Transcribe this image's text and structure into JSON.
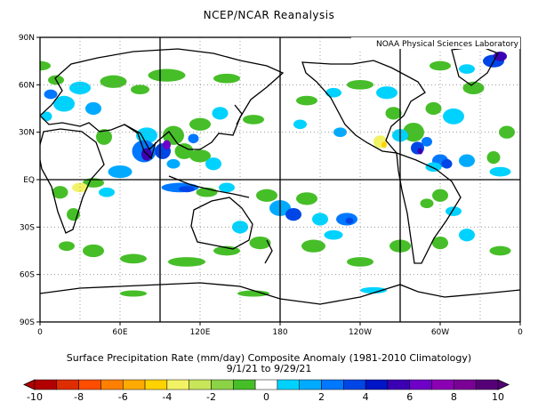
{
  "title": "NCEP/NCAR Reanalysis",
  "credit": "NOAA Physical Sciences Laboratory",
  "caption": "Surface Precipitation Rate (mm/day) Composite Anomaly (1981-2010 Climatology)",
  "date_range": "9/1/21  to 9/29/21",
  "lat_labels": [
    "90N",
    "60N",
    "30N",
    "EQ",
    "30S",
    "60S",
    "90S"
  ],
  "lon_labels": [
    "0",
    "60E",
    "120E",
    "180",
    "120W",
    "60W",
    "0"
  ],
  "colorbar_labels": [
    "-10",
    "-8",
    "-6",
    "-4",
    "-2",
    "0",
    "2",
    "4",
    "6",
    "8",
    "10"
  ],
  "colors": {
    "neg": [
      "#b30000",
      "#de2d00",
      "#ff4d00",
      "#ff8000",
      "#ffaa00",
      "#ffd200",
      "#f2f266",
      "#c8e65a",
      "#8cd246",
      "#46be28"
    ],
    "pos": [
      "#00d2ff",
      "#00aaff",
      "#0078ff",
      "#0046e6",
      "#0014c8",
      "#3c00b4",
      "#6e00c8",
      "#8c00b4",
      "#7a0096",
      "#560078"
    ]
  }
}
